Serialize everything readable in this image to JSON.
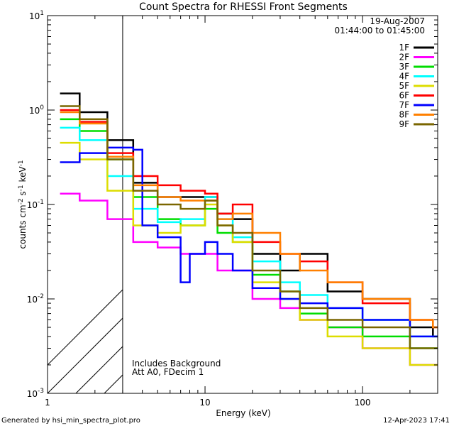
{
  "chart_data": {
    "type": "line",
    "title": "Count Spectra for RHESSI Front Segments",
    "xlabel": "Energy (keV)",
    "ylabel_main": "counts cm",
    "xscale": "log",
    "yscale": "log",
    "xlim": [
      1,
      300
    ],
    "ylim": [
      0.001,
      10
    ],
    "x_ticks": [
      {
        "v": 1,
        "label": "1"
      },
      {
        "v": 10,
        "label": "10"
      },
      {
        "v": 100,
        "label": "100"
      }
    ],
    "y_ticks": [
      {
        "v": 0.001,
        "m": "10",
        "e": "-3"
      },
      {
        "v": 0.01,
        "m": "10",
        "e": "-2"
      },
      {
        "v": 0.1,
        "m": "10",
        "e": "-1"
      },
      {
        "v": 1,
        "m": "10",
        "e": "0"
      },
      {
        "v": 10,
        "m": "10",
        "e": "1"
      }
    ],
    "hatched_region_keV": [
      1,
      3
    ],
    "annotations": {
      "date": "19-Aug-2007",
      "time_range": "01:44:00 to 01:45:00",
      "background_note": "Includes Background",
      "atten_note": "Att A0, FDecim 1"
    },
    "series": [
      {
        "name": "1F",
        "color": "#000000",
        "points": [
          [
            1.2,
            1.5
          ],
          [
            1.6,
            0.95
          ],
          [
            2.4,
            0.48
          ],
          [
            3.5,
            0.17
          ],
          [
            5,
            0.12
          ],
          [
            7,
            0.12
          ],
          [
            10,
            0.12
          ],
          [
            12,
            0.08
          ],
          [
            15,
            0.07
          ],
          [
            20,
            0.03
          ],
          [
            30,
            0.02
          ],
          [
            40,
            0.03
          ],
          [
            60,
            0.012
          ],
          [
            100,
            0.01
          ],
          [
            200,
            0.005
          ],
          [
            280,
            0.004
          ]
        ]
      },
      {
        "name": "2F",
        "color": "#ff00ff",
        "points": [
          [
            1.2,
            0.13
          ],
          [
            1.6,
            0.11
          ],
          [
            2.4,
            0.07
          ],
          [
            3.5,
            0.04
          ],
          [
            5,
            0.035
          ],
          [
            7,
            0.03
          ],
          [
            10,
            0.03
          ],
          [
            12,
            0.02
          ],
          [
            15,
            0.02
          ],
          [
            20,
            0.01
          ],
          [
            30,
            0.008
          ],
          [
            40,
            0.006
          ],
          [
            60,
            0.005
          ],
          [
            100,
            0.003
          ],
          [
            200,
            0.002
          ],
          [
            280,
            0.002
          ]
        ]
      },
      {
        "name": "3F",
        "color": "#00dd00",
        "points": [
          [
            1.2,
            0.8
          ],
          [
            1.6,
            0.6
          ],
          [
            2.4,
            0.3
          ],
          [
            3.5,
            0.12
          ],
          [
            5,
            0.07
          ],
          [
            7,
            0.06
          ],
          [
            10,
            0.09
          ],
          [
            12,
            0.05
          ],
          [
            15,
            0.04
          ],
          [
            20,
            0.018
          ],
          [
            30,
            0.012
          ],
          [
            40,
            0.007
          ],
          [
            60,
            0.005
          ],
          [
            100,
            0.004
          ],
          [
            200,
            0.003
          ],
          [
            280,
            0.003
          ]
        ]
      },
      {
        "name": "4F",
        "color": "#00ffff",
        "points": [
          [
            1.2,
            0.65
          ],
          [
            1.6,
            0.48
          ],
          [
            2.4,
            0.2
          ],
          [
            3.5,
            0.09
          ],
          [
            5,
            0.065
          ],
          [
            7,
            0.07
          ],
          [
            10,
            0.12
          ],
          [
            12,
            0.07
          ],
          [
            15,
            0.045
          ],
          [
            20,
            0.025
          ],
          [
            30,
            0.015
          ],
          [
            40,
            0.011
          ],
          [
            60,
            0.008
          ],
          [
            100,
            0.006
          ],
          [
            200,
            0.004
          ],
          [
            280,
            0.004
          ]
        ]
      },
      {
        "name": "5F",
        "color": "#dddd00",
        "points": [
          [
            1.2,
            0.45
          ],
          [
            1.6,
            0.3
          ],
          [
            2.4,
            0.14
          ],
          [
            3.5,
            0.06
          ],
          [
            5,
            0.05
          ],
          [
            7,
            0.06
          ],
          [
            10,
            0.1
          ],
          [
            12,
            0.06
          ],
          [
            15,
            0.04
          ],
          [
            20,
            0.015
          ],
          [
            30,
            0.01
          ],
          [
            40,
            0.006
          ],
          [
            60,
            0.004
          ],
          [
            100,
            0.003
          ],
          [
            200,
            0.002
          ],
          [
            280,
            0.002
          ]
        ]
      },
      {
        "name": "6F",
        "color": "#ff0000",
        "points": [
          [
            1.2,
            1.0
          ],
          [
            1.6,
            0.75
          ],
          [
            2.4,
            0.35
          ],
          [
            3.5,
            0.2
          ],
          [
            5,
            0.16
          ],
          [
            7,
            0.14
          ],
          [
            10,
            0.13
          ],
          [
            12,
            0.08
          ],
          [
            15,
            0.1
          ],
          [
            20,
            0.04
          ],
          [
            30,
            0.03
          ],
          [
            40,
            0.025
          ],
          [
            60,
            0.015
          ],
          [
            100,
            0.009
          ],
          [
            200,
            0.006
          ],
          [
            280,
            0.005
          ]
        ]
      },
      {
        "name": "7F",
        "color": "#0000ff",
        "points": [
          [
            1.2,
            0.28
          ],
          [
            1.6,
            0.35
          ],
          [
            2.4,
            0.4
          ],
          [
            3.5,
            0.38
          ],
          [
            4,
            0.06
          ],
          [
            5,
            0.045
          ],
          [
            7,
            0.015
          ],
          [
            8,
            0.03
          ],
          [
            10,
            0.04
          ],
          [
            12,
            0.03
          ],
          [
            15,
            0.02
          ],
          [
            20,
            0.013
          ],
          [
            30,
            0.01
          ],
          [
            40,
            0.009
          ],
          [
            60,
            0.008
          ],
          [
            100,
            0.006
          ],
          [
            200,
            0.004
          ],
          [
            280,
            0.004
          ]
        ]
      },
      {
        "name": "8F",
        "color": "#ff8000",
        "points": [
          [
            1.2,
            0.95
          ],
          [
            1.6,
            0.72
          ],
          [
            2.4,
            0.32
          ],
          [
            3.5,
            0.16
          ],
          [
            5,
            0.12
          ],
          [
            7,
            0.11
          ],
          [
            10,
            0.11
          ],
          [
            12,
            0.07
          ],
          [
            15,
            0.08
          ],
          [
            20,
            0.05
          ],
          [
            30,
            0.03
          ],
          [
            40,
            0.02
          ],
          [
            60,
            0.015
          ],
          [
            100,
            0.01
          ],
          [
            200,
            0.006
          ],
          [
            280,
            0.005
          ]
        ]
      },
      {
        "name": "9F",
        "color": "#7a6600",
        "points": [
          [
            1.2,
            1.1
          ],
          [
            1.6,
            0.8
          ],
          [
            2.4,
            0.3
          ],
          [
            3.5,
            0.14
          ],
          [
            5,
            0.1
          ],
          [
            7,
            0.09
          ],
          [
            10,
            0.11
          ],
          [
            12,
            0.06
          ],
          [
            15,
            0.05
          ],
          [
            20,
            0.02
          ],
          [
            30,
            0.012
          ],
          [
            40,
            0.008
          ],
          [
            60,
            0.006
          ],
          [
            100,
            0.005
          ],
          [
            200,
            0.003
          ],
          [
            280,
            0.003
          ]
        ]
      }
    ]
  },
  "footer": {
    "generated_by": "Generated by hsi_min_spectra_plot.pro",
    "timestamp": "12-Apr-2023 17:41"
  }
}
